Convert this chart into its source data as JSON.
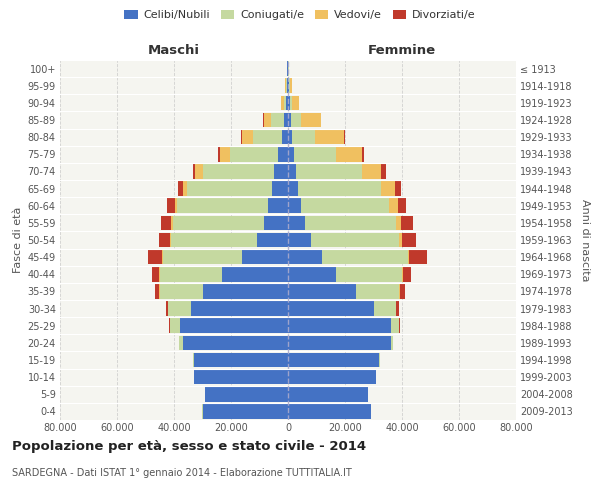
{
  "age_groups": [
    "0-4",
    "5-9",
    "10-14",
    "15-19",
    "20-24",
    "25-29",
    "30-34",
    "35-39",
    "40-44",
    "45-49",
    "50-54",
    "55-59",
    "60-64",
    "65-69",
    "70-74",
    "75-79",
    "80-84",
    "85-89",
    "90-94",
    "95-99",
    "100+"
  ],
  "birth_years": [
    "2009-2013",
    "2004-2008",
    "1999-2003",
    "1994-1998",
    "1989-1993",
    "1984-1988",
    "1979-1983",
    "1974-1978",
    "1969-1973",
    "1964-1968",
    "1959-1963",
    "1954-1958",
    "1949-1953",
    "1944-1948",
    "1939-1943",
    "1934-1938",
    "1929-1933",
    "1924-1928",
    "1919-1923",
    "1914-1918",
    "≤ 1913"
  ],
  "male_celibe": [
    30000,
    29000,
    33000,
    33000,
    37000,
    38000,
    34000,
    30000,
    23000,
    16000,
    11000,
    8500,
    7000,
    5500,
    5000,
    3500,
    2200,
    1500,
    800,
    400,
    200
  ],
  "male_coniugato": [
    10,
    20,
    50,
    200,
    1200,
    3500,
    8000,
    15000,
    22000,
    28000,
    30000,
    32000,
    32000,
    30000,
    25000,
    17000,
    10000,
    4500,
    700,
    300,
    100
  ],
  "male_vedovo": [
    1,
    1,
    2,
    5,
    10,
    30,
    50,
    100,
    150,
    200,
    300,
    500,
    800,
    1500,
    2500,
    3500,
    4000,
    2500,
    800,
    300,
    100
  ],
  "male_divorziato": [
    1,
    2,
    5,
    20,
    80,
    300,
    800,
    1500,
    2500,
    5000,
    4000,
    3500,
    2500,
    1500,
    1000,
    500,
    200,
    100,
    50,
    20,
    10
  ],
  "female_celibe": [
    29000,
    28000,
    31000,
    32000,
    36000,
    36000,
    30000,
    24000,
    17000,
    12000,
    8000,
    6000,
    4500,
    3500,
    2800,
    2000,
    1500,
    1000,
    600,
    300,
    100
  ],
  "female_coniugata": [
    5,
    10,
    30,
    150,
    900,
    3000,
    8000,
    15000,
    23000,
    30000,
    31000,
    32000,
    31000,
    29000,
    23000,
    15000,
    8000,
    3500,
    700,
    300,
    100
  ],
  "female_vedova": [
    1,
    1,
    1,
    2,
    5,
    20,
    60,
    150,
    300,
    600,
    1000,
    1800,
    3000,
    5000,
    7000,
    9000,
    10000,
    7000,
    2500,
    800,
    200
  ],
  "female_divorziata": [
    1,
    2,
    5,
    20,
    80,
    300,
    1000,
    2000,
    3000,
    6000,
    5000,
    4000,
    3000,
    2000,
    1500,
    800,
    400,
    200,
    80,
    20,
    10
  ],
  "color_celibe": "#4472c4",
  "color_coniugato": "#c5d9a0",
  "color_vedovo": "#f0c060",
  "color_divorziato": "#c0392b",
  "title": "Popolazione per età, sesso e stato civile - 2014",
  "subtitle": "SARDEGNA - Dati ISTAT 1° gennaio 2014 - Elaborazione TUTTITALIA.IT",
  "label_maschi": "Maschi",
  "label_femmine": "Femmine",
  "ylabel_left": "Fasce di età",
  "ylabel_right": "Anni di nascita",
  "xlim": 80000,
  "background_color": "#ffffff",
  "plot_bg_color": "#f5f5f0",
  "grid_color": "#cccccc",
  "legend_labels": [
    "Celibi/Nubili",
    "Coniugati/e",
    "Vedovi/e",
    "Divorziati/e"
  ],
  "tick_positions": [
    -80000,
    -60000,
    -40000,
    -20000,
    0,
    20000,
    40000,
    60000,
    80000
  ],
  "tick_labels": [
    "80.000",
    "60.000",
    "40.000",
    "20.000",
    "0",
    "20.000",
    "40.000",
    "60.000",
    "80.000"
  ]
}
